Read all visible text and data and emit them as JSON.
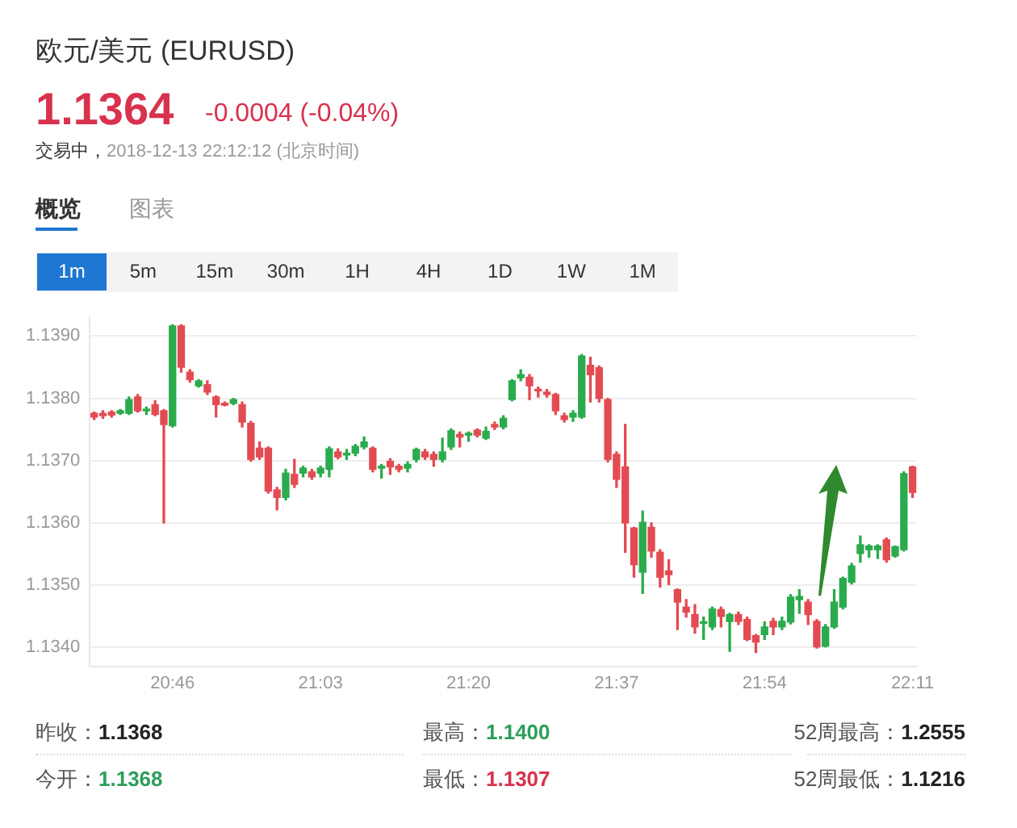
{
  "chart_data": {
    "type": "candlestick",
    "title": "欧元/美元 (EURUSD)",
    "subtitle": "交易中，2018-12-13 22:12:12 (北京时间)",
    "annotations": [
      "1.1364",
      "-0.0004 (-0.04%)",
      "概览",
      "图表",
      "1m",
      "5m",
      "15m",
      "30m",
      "1H",
      "4H",
      "1D",
      "1W",
      "1M",
      "昨收：1.1368",
      "最高：1.1400",
      "52周最高：1.2555",
      "今开：1.1368",
      "最低：1.1307",
      "52周最低：1.1216"
    ],
    "categories": [
      null,
      null,
      null,
      null,
      null,
      null,
      null,
      null,
      null,
      "20:46",
      null,
      null,
      null,
      null,
      null,
      null,
      null,
      null,
      null,
      null,
      null,
      null,
      null,
      null,
      null,
      null,
      "21:03",
      null,
      null,
      null,
      null,
      null,
      null,
      null,
      null,
      null,
      null,
      null,
      null,
      null,
      null,
      null,
      null,
      "21:20",
      null,
      null,
      null,
      null,
      null,
      null,
      null,
      null,
      null,
      null,
      null,
      null,
      null,
      null,
      null,
      null,
      "21:37",
      null,
      null,
      null,
      null,
      null,
      null,
      null,
      null,
      null,
      null,
      null,
      null,
      null,
      null,
      null,
      null,
      "21:54",
      null,
      null,
      null,
      null,
      null,
      null,
      null,
      null,
      null,
      null,
      null,
      null,
      null,
      null,
      null,
      null,
      "22:11"
    ],
    "ohlc": [
      [
        1.13776,
        1.13778,
        1.13766,
        1.1377
      ],
      [
        1.13776,
        1.1378,
        1.13768,
        1.13772
      ],
      [
        1.13778,
        1.1378,
        1.1377,
        1.13773
      ],
      [
        1.13776,
        1.13782,
        1.13774,
        1.1378
      ],
      [
        1.13776,
        1.13802,
        1.13774,
        1.13798
      ],
      [
        1.13802,
        1.13806,
        1.13778,
        1.1378
      ],
      [
        1.1378,
        1.13786,
        1.13774,
        1.13782
      ],
      [
        1.1379,
        1.13796,
        1.13772,
        1.13774
      ],
      [
        1.1378,
        1.13782,
        1.136,
        1.13758
      ],
      [
        1.13756,
        1.13918,
        1.13754,
        1.13916
      ],
      [
        1.13916,
        1.13918,
        1.13842,
        1.1385
      ],
      [
        1.13842,
        1.13846,
        1.13826,
        1.1383
      ],
      [
        1.1382,
        1.1383,
        1.13818,
        1.13828
      ],
      [
        1.13822,
        1.13828,
        1.13806,
        1.1381
      ],
      [
        1.13802,
        1.13804,
        1.1377,
        1.1379
      ],
      [
        1.13792,
        1.13794,
        1.13788,
        1.13789
      ],
      [
        1.13792,
        1.138,
        1.1379,
        1.13798
      ],
      [
        1.1379,
        1.13794,
        1.13754,
        1.13762
      ],
      [
        1.1376,
        1.13763,
        1.13699,
        1.13702
      ],
      [
        1.1372,
        1.1373,
        1.13702,
        1.13706
      ],
      [
        1.1372,
        1.13722,
        1.13648,
        1.13651
      ],
      [
        1.13653,
        1.13657,
        1.13621,
        1.13641
      ],
      [
        1.13641,
        1.13686,
        1.13637,
        1.1368
      ],
      [
        1.13678,
        1.13702,
        1.13657,
        1.13662
      ],
      [
        1.1368,
        1.13691,
        1.13674,
        1.13688
      ],
      [
        1.13682,
        1.13686,
        1.1367,
        1.13674
      ],
      [
        1.1368,
        1.13691,
        1.13674,
        1.13688
      ],
      [
        1.13686,
        1.13722,
        1.13674,
        1.13719
      ],
      [
        1.13714,
        1.13719,
        1.13703,
        1.13706
      ],
      [
        1.13709,
        1.13718,
        1.13702,
        1.13712
      ],
      [
        1.13712,
        1.13726,
        1.13708,
        1.13723
      ],
      [
        1.13722,
        1.13738,
        1.13719,
        1.1373
      ],
      [
        1.1372,
        1.13722,
        1.13682,
        1.13686
      ],
      [
        1.13688,
        1.13694,
        1.13672,
        1.13691
      ],
      [
        1.13699,
        1.13703,
        1.13678,
        1.1369
      ],
      [
        1.13691,
        1.13694,
        1.13682,
        1.13686
      ],
      [
        1.13688,
        1.13698,
        1.13682,
        1.13694
      ],
      [
        1.13702,
        1.1372,
        1.13698,
        1.13718
      ],
      [
        1.13714,
        1.13718,
        1.13702,
        1.13706
      ],
      [
        1.1371,
        1.13714,
        1.13691,
        1.13702
      ],
      [
        1.13702,
        1.13736,
        1.13698,
        1.13714
      ],
      [
        1.13722,
        1.13751,
        1.13718,
        1.13748
      ],
      [
        1.13742,
        1.13746,
        1.13722,
        1.13738
      ],
      [
        1.13741,
        1.13746,
        1.13731,
        1.13744
      ],
      [
        1.13749,
        1.13751,
        1.13738,
        1.13741
      ],
      [
        1.13736,
        1.13754,
        1.13734,
        1.13747
      ],
      [
        1.13758,
        1.13762,
        1.1375,
        1.13754
      ],
      [
        1.13754,
        1.13772,
        1.13751,
        1.13768
      ],
      [
        1.13798,
        1.1383,
        1.13796,
        1.13828
      ],
      [
        1.13833,
        1.13846,
        1.13828,
        1.13838
      ],
      [
        1.13834,
        1.13838,
        1.13798,
        1.1382
      ],
      [
        1.13814,
        1.13818,
        1.13802,
        1.13812
      ],
      [
        1.1381,
        1.13814,
        1.13802,
        1.13806
      ],
      [
        1.13806,
        1.13808,
        1.13774,
        1.1378
      ],
      [
        1.13772,
        1.13776,
        1.13762,
        1.13766
      ],
      [
        1.1377,
        1.1378,
        1.13763,
        1.13776
      ],
      [
        1.1377,
        1.1387,
        1.13768,
        1.13868
      ],
      [
        1.13853,
        1.13866,
        1.13794,
        1.13838
      ],
      [
        1.13849,
        1.13852,
        1.13794,
        1.138
      ],
      [
        1.13798,
        1.138,
        1.13698,
        1.13702
      ],
      [
        1.1371,
        1.13714,
        1.13657,
        1.1367
      ],
      [
        1.1369,
        1.13758,
        1.13553,
        1.136
      ],
      [
        1.13592,
        1.13593,
        1.13513,
        1.13533
      ],
      [
        1.13521,
        1.13619,
        1.13487,
        1.13601
      ],
      [
        1.13593,
        1.136,
        1.13545,
        1.13555
      ],
      [
        1.13553,
        1.13557,
        1.13497,
        1.13513
      ],
      [
        1.13523,
        1.13541,
        1.13501,
        1.13517
      ],
      [
        1.13493,
        1.13494,
        1.13429,
        1.13473
      ],
      [
        1.13465,
        1.13477,
        1.13449,
        1.13457
      ],
      [
        1.13453,
        1.13469,
        1.13423,
        1.13433
      ],
      [
        1.13439,
        1.13449,
        1.13413,
        1.13441
      ],
      [
        1.13433,
        1.13465,
        1.13429,
        1.13462
      ],
      [
        1.13461,
        1.13465,
        1.13433,
        1.1345
      ],
      [
        1.13442,
        1.13455,
        1.13394,
        1.13453
      ],
      [
        1.13453,
        1.13457,
        1.13437,
        1.13442
      ],
      [
        1.13445,
        1.13449,
        1.13411,
        1.13413
      ],
      [
        1.13419,
        1.13421,
        1.13392,
        1.13409
      ],
      [
        1.13421,
        1.13441,
        1.13413,
        1.13433
      ],
      [
        1.13442,
        1.13447,
        1.13421,
        1.13433
      ],
      [
        1.13433,
        1.13449,
        1.13429,
        1.13442
      ],
      [
        1.13441,
        1.13485,
        1.13438,
        1.13481
      ],
      [
        1.13477,
        1.13493,
        1.13455,
        1.13482
      ],
      [
        1.13473,
        1.13477,
        1.13437,
        1.13453
      ],
      [
        1.13442,
        1.13445,
        1.13399,
        1.13401
      ],
      [
        1.13402,
        1.13437,
        1.13401,
        1.13433
      ],
      [
        1.13433,
        1.13493,
        1.13431,
        1.13473
      ],
      [
        1.13465,
        1.13513,
        1.13462,
        1.13511
      ],
      [
        1.13505,
        1.13535,
        1.13502,
        1.13531
      ],
      [
        1.13551,
        1.13579,
        1.13537,
        1.13565
      ],
      [
        1.13557,
        1.13565,
        1.13545,
        1.13563
      ],
      [
        1.13557,
        1.13565,
        1.13543,
        1.13563
      ],
      [
        1.13573,
        1.13576,
        1.13537,
        1.13541
      ],
      [
        1.13547,
        1.13563,
        1.13545,
        1.13562
      ],
      [
        1.13557,
        1.13682,
        1.13555,
        1.13679
      ],
      [
        1.1369,
        1.13691,
        1.13641,
        1.13649
      ]
    ],
    "colors": [
      "#e34b53",
      "#e34b53",
      "#e34b53",
      "#2aab4e",
      "#2aab4e",
      "#e34b53",
      "#2aab4e",
      "#e34b53",
      "#e34b53",
      "#2aab4e",
      "#e34b53",
      "#e34b53",
      "#2aab4e",
      "#e34b53",
      "#e34b53",
      "#e34b53",
      "#2aab4e",
      "#e34b53",
      "#e34b53",
      "#e34b53",
      "#e34b53",
      "#e34b53",
      "#2aab4e",
      "#e34b53",
      "#2aab4e",
      "#e34b53",
      "#2aab4e",
      "#2aab4e",
      "#e34b53",
      "#2aab4e",
      "#2aab4e",
      "#2aab4e",
      "#e34b53",
      "#2aab4e",
      "#e34b53",
      "#e34b53",
      "#2aab4e",
      "#2aab4e",
      "#e34b53",
      "#e34b53",
      "#2aab4e",
      "#2aab4e",
      "#e34b53",
      "#2aab4e",
      "#e34b53",
      "#2aab4e",
      "#e34b53",
      "#2aab4e",
      "#2aab4e",
      "#2aab4e",
      "#e34b53",
      "#e34b53",
      "#e34b53",
      "#e34b53",
      "#e34b53",
      "#2aab4e",
      "#2aab4e",
      "#e34b53",
      "#e34b53",
      "#e34b53",
      "#e34b53",
      "#e34b53",
      "#e34b53",
      "#2aab4e",
      "#e34b53",
      "#e34b53",
      "#e34b53",
      "#e34b53",
      "#e34b53",
      "#e34b53",
      "#2aab4e",
      "#2aab4e",
      "#e34b53",
      "#2aab4e",
      "#e34b53",
      "#e34b53",
      "#e34b53",
      "#2aab4e",
      "#e34b53",
      "#2aab4e",
      "#2aab4e",
      "#2aab4e",
      "#e34b53",
      "#e34b53",
      "#2aab4e",
      "#2aab4e",
      "#2aab4e",
      "#2aab4e",
      "#2aab4e",
      "#2aab4e",
      "#2aab4e",
      "#e34b53",
      "#2aab4e",
      "#2aab4e",
      "#e34b53"
    ],
    "ylim": [
      1.1337,
      1.1393
    ],
    "yticks": [
      {
        "value": 1.134,
        "label": "1.1340"
      },
      {
        "value": 1.135,
        "label": "1.1350"
      },
      {
        "value": 1.136,
        "label": "1.1360"
      },
      {
        "value": 1.137,
        "label": "1.1370"
      },
      {
        "value": 1.138,
        "label": "1.1380"
      },
      {
        "value": 1.139,
        "label": "1.1390"
      }
    ],
    "grid": "y",
    "legend": false
  }
}
